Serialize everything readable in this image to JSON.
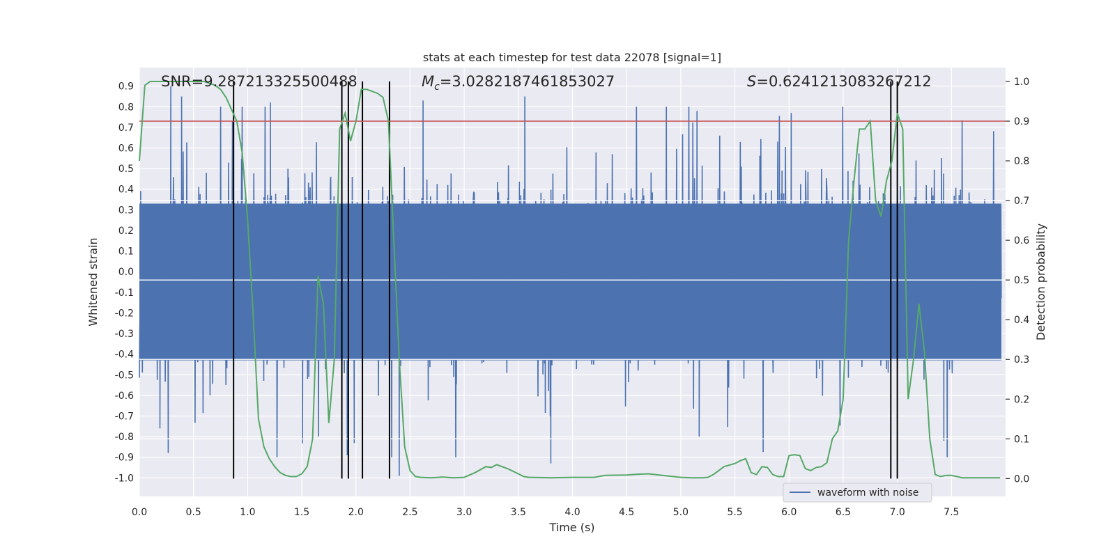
{
  "chart_data": {
    "type": "line",
    "title": "stats at each timestep for test data 22078 [signal=1]",
    "xlabel": "Time (s)",
    "ylabel": "Whitened strain",
    "ylabel_right": "Detection probability",
    "xlim": [
      0.0,
      8.0
    ],
    "ylim": [
      -1.09,
      0.99
    ],
    "ylim_right": [
      -0.045,
      1.035
    ],
    "x_ticks": [
      "0.0",
      "0.5",
      "1.0",
      "1.5",
      "2.0",
      "2.5",
      "3.0",
      "3.5",
      "4.0",
      "4.5",
      "5.0",
      "5.5",
      "6.0",
      "6.5",
      "7.0",
      "7.5"
    ],
    "y_ticks": [
      "0.9",
      "0.8",
      "0.7",
      "0.6",
      "0.5",
      "0.4",
      "0.3",
      "0.2",
      "0.1",
      "0.0",
      "-0.1",
      "-0.2",
      "-0.3",
      "-0.4",
      "-0.5",
      "-0.6",
      "-0.7",
      "-0.8",
      "-0.9",
      "-1.0"
    ],
    "y_ticks_right": [
      "1.0",
      "0.9",
      "0.8",
      "0.7",
      "0.6",
      "0.5",
      "0.4",
      "0.3",
      "0.2",
      "0.1",
      "0.0"
    ],
    "annotations": {
      "snr": "SNR=9.287213325500488",
      "mc_symbol": "M",
      "mc_sub": "c",
      "mc_value": "=3.0282187461853027",
      "s_symbol": "S",
      "s_value": "=0.6241213083267212"
    },
    "threshold": 0.9,
    "vlines": [
      0.87,
      1.87,
      1.93,
      2.06,
      2.31,
      6.94,
      7.0
    ],
    "waveform": {
      "name": "waveform with noise",
      "approx_range": [
        -1.0,
        0.9
      ],
      "spikes": [
        {
          "x": 0.29,
          "y": 0.9
        },
        {
          "x": 0.39,
          "y": 0.85
        },
        {
          "x": 0.86,
          "y": 0.73
        },
        {
          "x": 1.21,
          "y": 0.82
        },
        {
          "x": 2.62,
          "y": 0.83
        },
        {
          "x": 3.56,
          "y": 0.85
        },
        {
          "x": 5.15,
          "y": 0.78
        },
        {
          "x": 6.02,
          "y": 0.77
        },
        {
          "x": 0.19,
          "y": -0.76
        },
        {
          "x": 1.92,
          "y": -0.89
        },
        {
          "x": 2.4,
          "y": -0.99
        },
        {
          "x": 3.8,
          "y": -0.93
        },
        {
          "x": 5.17,
          "y": -0.8
        },
        {
          "x": 7.43,
          "y": -0.82
        }
      ]
    },
    "probability": {
      "name": "Detection probability",
      "x": [
        0.0,
        0.05,
        0.1,
        0.15,
        0.2,
        0.3,
        0.4,
        0.5,
        0.6,
        0.7,
        0.75,
        0.8,
        0.85,
        0.9,
        0.95,
        1.0,
        1.05,
        1.1,
        1.15,
        1.2,
        1.25,
        1.3,
        1.35,
        1.4,
        1.45,
        1.5,
        1.55,
        1.6,
        1.65,
        1.7,
        1.75,
        1.8,
        1.85,
        1.9,
        1.95,
        2.0,
        2.05,
        2.1,
        2.15,
        2.2,
        2.25,
        2.3,
        2.35,
        2.4,
        2.45,
        2.5,
        2.55,
        2.6,
        2.7,
        2.8,
        2.9,
        3.0,
        3.1,
        3.2,
        3.25,
        3.3,
        3.4,
        3.5,
        3.55,
        3.6,
        3.8,
        4.0,
        4.2,
        4.3,
        4.5,
        4.6,
        4.7,
        4.8,
        5.0,
        5.1,
        5.2,
        5.25,
        5.3,
        5.35,
        5.4,
        5.5,
        5.55,
        5.6,
        5.65,
        5.7,
        5.75,
        5.8,
        5.85,
        5.9,
        5.95,
        6.0,
        6.05,
        6.1,
        6.15,
        6.2,
        6.25,
        6.3,
        6.35,
        6.4,
        6.45,
        6.5,
        6.55,
        6.6,
        6.65,
        6.7,
        6.75,
        6.8,
        6.85,
        6.9,
        6.95,
        7.0,
        7.05,
        7.1,
        7.15,
        7.2,
        7.25,
        7.3,
        7.35,
        7.4,
        7.45,
        7.5,
        7.55,
        7.6,
        7.7,
        7.8,
        7.95
      ],
      "values": [
        0.8,
        0.99,
        1.0,
        1.0,
        1.0,
        1.0,
        1.0,
        1.0,
        1.0,
        0.99,
        0.98,
        0.96,
        0.93,
        0.9,
        0.82,
        0.65,
        0.42,
        0.15,
        0.08,
        0.05,
        0.03,
        0.015,
        0.008,
        0.005,
        0.005,
        0.012,
        0.03,
        0.1,
        0.51,
        0.44,
        0.14,
        0.3,
        0.88,
        0.92,
        0.85,
        0.9,
        0.98,
        0.98,
        0.975,
        0.97,
        0.96,
        0.9,
        0.6,
        0.3,
        0.08,
        0.02,
        0.005,
        0.003,
        0.002,
        0.004,
        0.002,
        0.003,
        0.015,
        0.03,
        0.028,
        0.035,
        0.025,
        0.012,
        0.005,
        0.003,
        0.002,
        0.003,
        0.003,
        0.008,
        0.009,
        0.011,
        0.012,
        0.009,
        0.003,
        0.002,
        0.002,
        0.003,
        0.01,
        0.02,
        0.03,
        0.038,
        0.045,
        0.05,
        0.015,
        0.01,
        0.03,
        0.028,
        0.01,
        0.005,
        0.005,
        0.058,
        0.06,
        0.058,
        0.025,
        0.02,
        0.028,
        0.03,
        0.04,
        0.1,
        0.12,
        0.2,
        0.6,
        0.75,
        0.88,
        0.88,
        0.9,
        0.7,
        0.66,
        0.75,
        0.8,
        0.92,
        0.88,
        0.2,
        0.3,
        0.44,
        0.32,
        0.1,
        0.01,
        0.005,
        0.008,
        0.008,
        0.005,
        0.002,
        0.002,
        0.002,
        0.002
      ]
    }
  }
}
